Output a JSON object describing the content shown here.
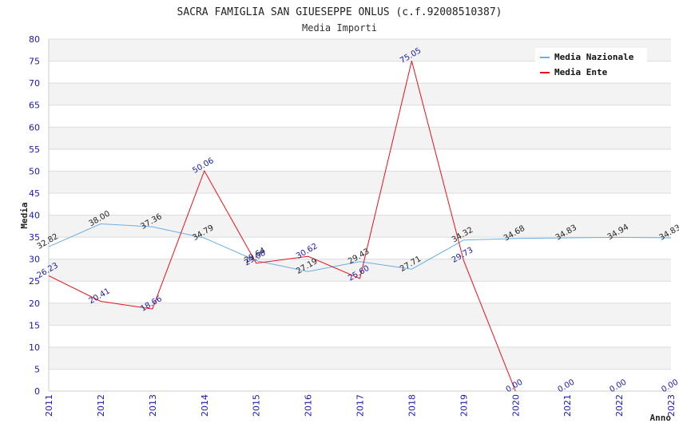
{
  "chart_data": {
    "type": "line",
    "title": "SACRA FAMIGLIA SAN GIUESEPPE ONLUS (c.f.92008510387)",
    "subtitle": "Media Importi",
    "xlabel": "Anno",
    "ylabel": "Media",
    "ylim": [
      0,
      80
    ],
    "ytick_step": 5,
    "x": [
      "2011",
      "2012",
      "2013",
      "2014",
      "2015",
      "2016",
      "2017",
      "2018",
      "2019",
      "2020",
      "2021",
      "2022",
      "2023"
    ],
    "series": [
      {
        "name": "Media Nazionale",
        "color": "#6aaee6",
        "values": [
          32.82,
          38.0,
          37.36,
          34.79,
          29.64,
          27.19,
          29.43,
          27.71,
          34.32,
          34.68,
          34.83,
          34.94,
          34.83
        ],
        "labels": [
          "32.82",
          "38.00",
          "37.36",
          "34.79",
          "29.64",
          "27.19",
          "29.43",
          "27.71",
          "34.32",
          "34.68",
          "34.83",
          "34.94",
          "34.83"
        ]
      },
      {
        "name": "Media Ente",
        "color": "#e8101a",
        "values": [
          26.23,
          20.41,
          18.66,
          50.06,
          29.08,
          30.62,
          25.6,
          75.05,
          29.73,
          0.0,
          null,
          null,
          null
        ],
        "labels": [
          "26.23",
          "20.41",
          "18.66",
          "50.06",
          "29.08",
          "30.62",
          "25.60",
          "75.05",
          "29.73",
          "0.00",
          "0.00",
          "0.00",
          "0.00"
        ]
      }
    ],
    "grid": true,
    "legend_position": "top-right"
  }
}
